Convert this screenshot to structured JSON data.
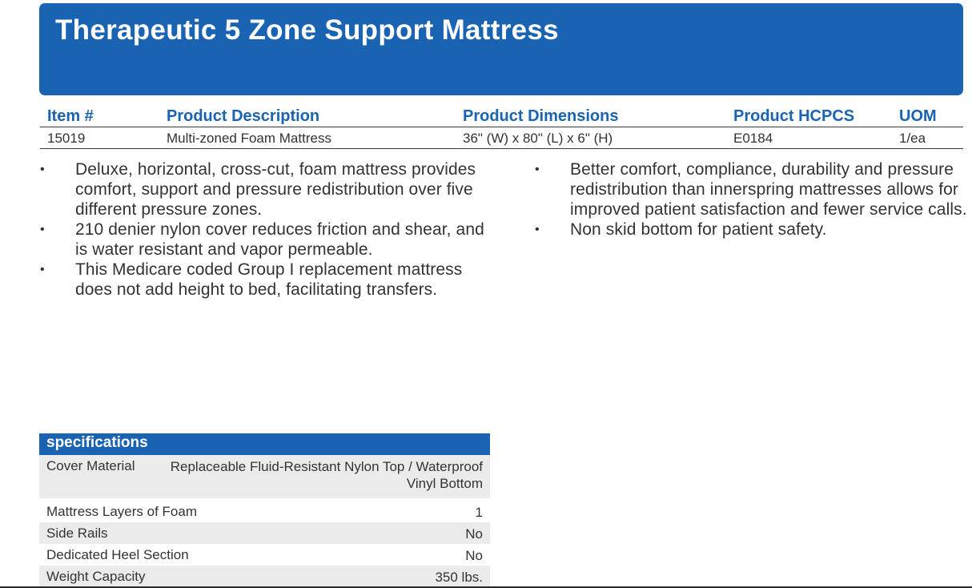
{
  "header": {
    "title": "Therapeutic 5 Zone Support Mattress"
  },
  "product_table": {
    "columns": [
      "Item #",
      "Product Description",
      "Product Dimensions",
      "Product HCPCS",
      "UOM"
    ],
    "row": [
      "15019",
      "Multi-zoned Foam Mattress",
      "36\" (W) x 80\" (L) x 6\" (H)",
      "E0184",
      "1/ea"
    ]
  },
  "features_left": [
    "Deluxe, horizontal, cross-cut, foam mattress provides comfort, support and pressure redistribution over five different pressure zones.",
    "210 denier nylon cover reduces friction and shear, and is water resistant and vapor permeable.",
    "This Medicare coded Group I replacement mattress does not add height to bed, facilitating transfers."
  ],
  "features_right": [
    "Better comfort, compliance, durability and pressure redistribution than innerspring mattresses allows for improved patient satisfaction and fewer service calls.",
    "Non skid bottom for patient safety."
  ],
  "bullet_char": "•",
  "specifications": {
    "title": "specifications",
    "rows": [
      {
        "label": "Cover Material",
        "value": "Replaceable Fluid-Resistant Nylon Top / Waterproof Vinyl Bottom"
      },
      {
        "label": "Mattress Layers of Foam",
        "value": "1"
      },
      {
        "label": "Side Rails",
        "value": "No"
      },
      {
        "label": "Dedicated Heel Section",
        "value": "No"
      },
      {
        "label": "Weight Capacity",
        "value": "350 lbs."
      }
    ]
  },
  "colors": {
    "brand_blue": "#1a63b3",
    "row_shade": "#ebebeb"
  }
}
